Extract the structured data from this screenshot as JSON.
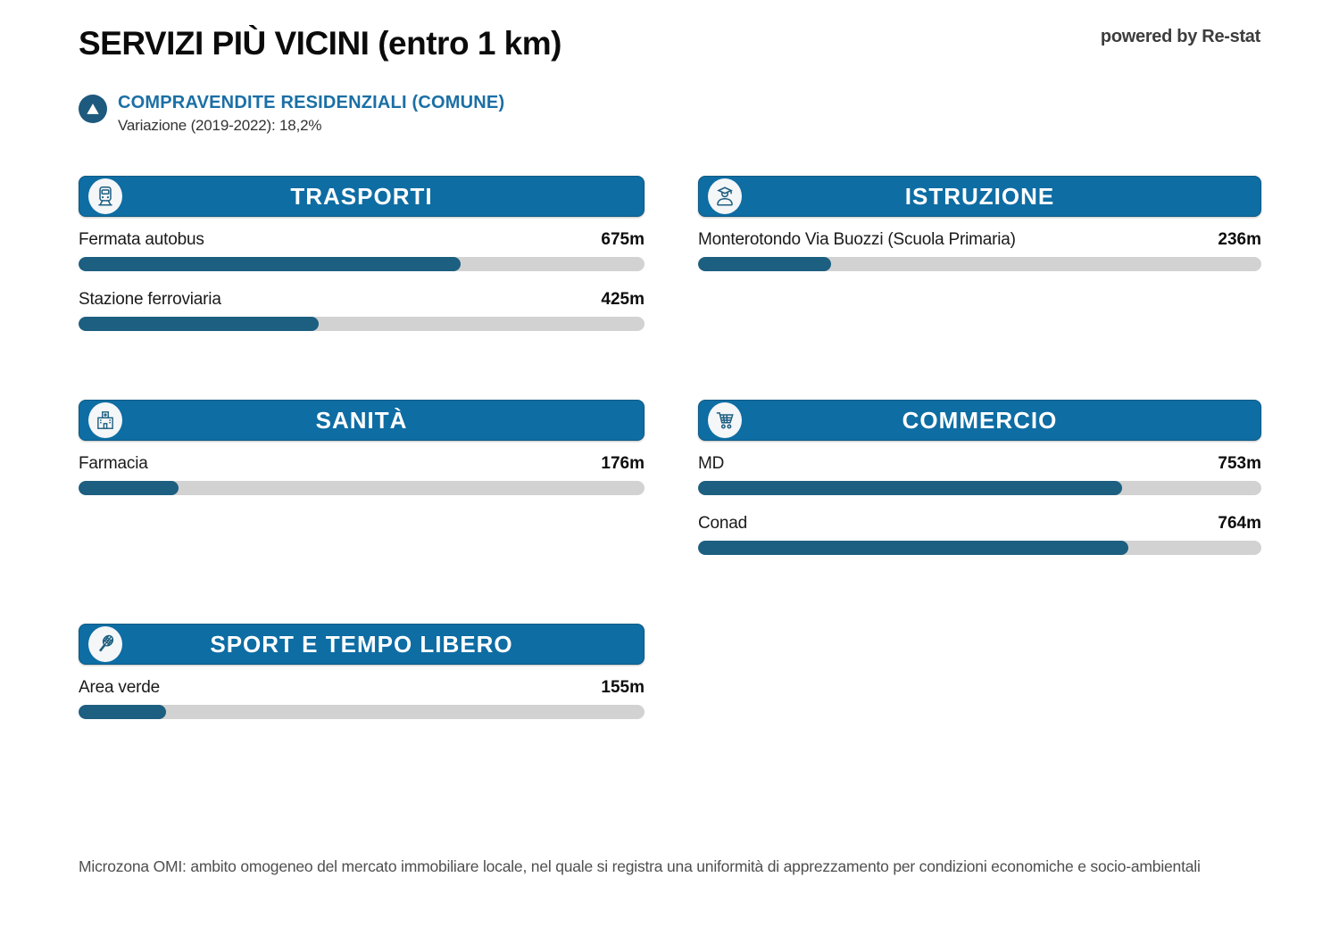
{
  "header": {
    "title": "SERVIZI PIÙ VICINI (entro 1 km)",
    "powered_by": "powered by Re-stat"
  },
  "subtitle": {
    "label": "COMPRAVENDITE RESIDENZIALI (COMUNE)",
    "variation": "Variazione (2019-2022): 18,2%"
  },
  "colors": {
    "header_blue": "#0e6da3",
    "bar_fill": "#1d5f80",
    "bar_track": "#d2d2d2",
    "subtitle_blue": "#1b6fa5",
    "badge_blue": "#1d5a7d"
  },
  "sections": [
    {
      "title": "TRASPORTI",
      "icon": "train-icon",
      "rows": [
        {
          "label": "Fermata autobus",
          "value": "675m",
          "percent": 67.5
        },
        {
          "label": "Stazione ferroviaria",
          "value": "425m",
          "percent": 42.5
        }
      ]
    },
    {
      "title": "ISTRUZIONE",
      "icon": "graduate-icon",
      "rows": [
        {
          "label": "Monterotondo Via Buozzi (Scuola Primaria)",
          "value": "236m",
          "percent": 23.6
        }
      ]
    },
    {
      "title": "SANITÀ",
      "icon": "hospital-icon",
      "rows": [
        {
          "label": "Farmacia",
          "value": "176m",
          "percent": 17.6
        }
      ]
    },
    {
      "title": "COMMERCIO",
      "icon": "cart-icon",
      "rows": [
        {
          "label": "MD",
          "value": "753m",
          "percent": 75.3
        },
        {
          "label": "Conad",
          "value": "764m",
          "percent": 76.4
        }
      ]
    },
    {
      "title": "SPORT E TEMPO LIBERO",
      "icon": "racket-icon",
      "rows": [
        {
          "label": "Area verde",
          "value": "155m",
          "percent": 15.5
        }
      ]
    }
  ],
  "footer": {
    "note": "Microzona OMI: ambito omogeneo del mercato immobiliare locale, nel quale si registra una uniformità di apprezzamento per condizioni economiche e socio-ambientali"
  },
  "chart_data": [
    {
      "type": "bar",
      "title": "TRASPORTI",
      "orientation": "horizontal",
      "categories": [
        "Fermata autobus",
        "Stazione ferroviaria"
      ],
      "values": [
        675,
        425
      ],
      "unit": "m",
      "xlim": [
        0,
        1000
      ],
      "bar_color": "#1d5f80",
      "track_color": "#d2d2d2"
    },
    {
      "type": "bar",
      "title": "ISTRUZIONE",
      "orientation": "horizontal",
      "categories": [
        "Monterotondo Via Buozzi (Scuola Primaria)"
      ],
      "values": [
        236
      ],
      "unit": "m",
      "xlim": [
        0,
        1000
      ],
      "bar_color": "#1d5f80",
      "track_color": "#d2d2d2"
    },
    {
      "type": "bar",
      "title": "SANITÀ",
      "orientation": "horizontal",
      "categories": [
        "Farmacia"
      ],
      "values": [
        176
      ],
      "unit": "m",
      "xlim": [
        0,
        1000
      ],
      "bar_color": "#1d5f80",
      "track_color": "#d2d2d2"
    },
    {
      "type": "bar",
      "title": "COMMERCIO",
      "orientation": "horizontal",
      "categories": [
        "MD",
        "Conad"
      ],
      "values": [
        753,
        764
      ],
      "unit": "m",
      "xlim": [
        0,
        1000
      ],
      "bar_color": "#1d5f80",
      "track_color": "#d2d2d2"
    },
    {
      "type": "bar",
      "title": "SPORT E TEMPO LIBERO",
      "orientation": "horizontal",
      "categories": [
        "Area verde"
      ],
      "values": [
        155
      ],
      "unit": "m",
      "xlim": [
        0,
        1000
      ],
      "bar_color": "#1d5f80",
      "track_color": "#d2d2d2"
    }
  ]
}
